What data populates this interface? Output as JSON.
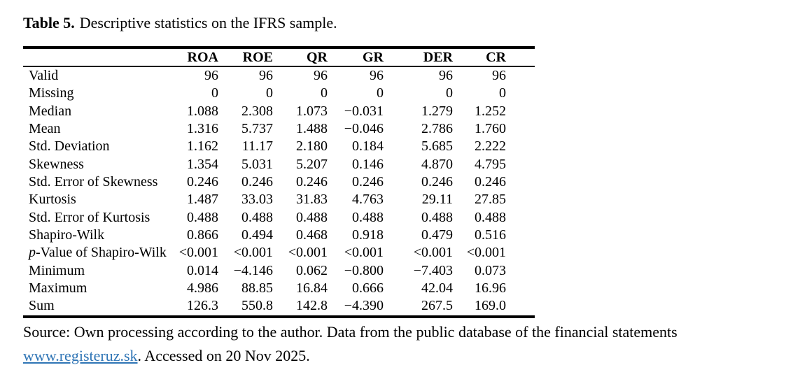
{
  "caption": {
    "label": "Table 5.",
    "text": "Descriptive statistics on the IFRS sample."
  },
  "table": {
    "columns": [
      "ROA",
      "ROE",
      "QR",
      "GR",
      "DER",
      "CR"
    ],
    "rows": [
      {
        "label": "Valid",
        "values": [
          "96",
          "96",
          "96",
          "96",
          "96",
          "96"
        ]
      },
      {
        "label": "Missing",
        "values": [
          "0",
          "0",
          "0",
          "0",
          "0",
          "0"
        ]
      },
      {
        "label": "Median",
        "values": [
          "1.088",
          "2.308",
          "1.073",
          "−0.031",
          "1.279",
          "1.252"
        ]
      },
      {
        "label": "Mean",
        "values": [
          "1.316",
          "5.737",
          "1.488",
          "−0.046",
          "2.786",
          "1.760"
        ]
      },
      {
        "label": "Std. Deviation",
        "values": [
          "1.162",
          "11.17",
          "2.180",
          "0.184",
          "5.685",
          "2.222"
        ]
      },
      {
        "label": "Skewness",
        "values": [
          "1.354",
          "5.031",
          "5.207",
          "0.146",
          "4.870",
          "4.795"
        ]
      },
      {
        "label": "Std. Error of Skewness",
        "values": [
          "0.246",
          "0.246",
          "0.246",
          "0.246",
          "0.246",
          "0.246"
        ]
      },
      {
        "label": "Kurtosis",
        "values": [
          "1.487",
          "33.03",
          "31.83",
          "4.763",
          "29.11",
          "27.85"
        ]
      },
      {
        "label": "Std. Error of Kurtosis",
        "values": [
          "0.488",
          "0.488",
          "0.488",
          "0.488",
          "0.488",
          "0.488"
        ]
      },
      {
        "label": "Shapiro-Wilk",
        "values": [
          "0.866",
          "0.494",
          "0.468",
          "0.918",
          "0.479",
          "0.516"
        ]
      },
      {
        "label": "p-Value of Shapiro-Wilk",
        "italic_prefix": "p",
        "values": [
          "<0.001",
          "<0.001",
          "<0.001",
          "<0.001",
          "<0.001",
          "<0.001"
        ]
      },
      {
        "label": "Minimum",
        "values": [
          "0.014",
          "−4.146",
          "0.062",
          "−0.800",
          "−7.403",
          "0.073"
        ]
      },
      {
        "label": "Maximum",
        "values": [
          "4.986",
          "88.85",
          "16.84",
          "0.666",
          "42.04",
          "16.96"
        ]
      },
      {
        "label": "Sum",
        "values": [
          "126.3",
          "550.8",
          "142.8",
          "−4.390",
          "267.5",
          "169.0"
        ]
      }
    ]
  },
  "source_note": {
    "line1": "Source: Own processing according to the author. Data from the public database of the financial statements",
    "link_text": "www.registeruz.sk",
    "line2_suffix": ". Accessed on 20 Nov 2025."
  },
  "colors": {
    "text": "#000000",
    "link": "#2e74b5",
    "background": "#ffffff"
  }
}
